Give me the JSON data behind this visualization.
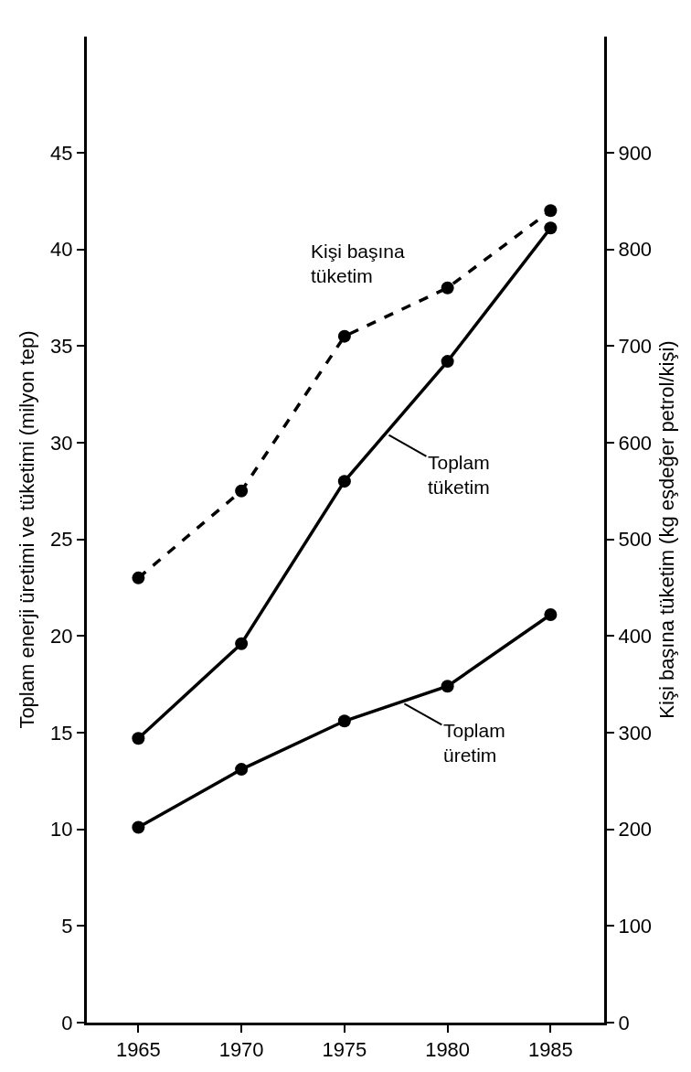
{
  "chart_data": {
    "type": "line",
    "xlabel": null,
    "ylabel": "Toplam enerji üretimi ve tüketimi (milyon tep)",
    "y2label": "Kişi başına tüketim (kg eşdeğer petrol/kişi)",
    "x": [
      1965,
      1970,
      1975,
      1980,
      1985
    ],
    "series": [
      {
        "name": "Kişi başına\ntüketim",
        "color": "#000000",
        "values": [
          460,
          550,
          710,
          760,
          840
        ],
        "axis": "y2",
        "line_style": "dashed"
      },
      {
        "name": "Toplam\ntüketim",
        "color": "#000000",
        "values": [
          14.7,
          19.6,
          28.0,
          34.2,
          41.1
        ],
        "line_style": "solid"
      },
      {
        "name": "Toplam\nüretim",
        "color": "#000000",
        "values": [
          10.1,
          13.1,
          15.6,
          17.4,
          21.1
        ],
        "line_style": "solid"
      }
    ],
    "xlim": [
      1962.5,
      1987.6
    ],
    "xticks": [
      1965,
      1970,
      1975,
      1980,
      1985
    ],
    "ylim": [
      0,
      51
    ],
    "yticks": [
      0,
      5,
      10,
      15,
      20,
      25,
      30,
      35,
      40,
      45
    ],
    "y2lim": [
      0,
      1020
    ],
    "y2ticks": [
      0,
      100,
      200,
      300,
      400,
      500,
      600,
      700,
      800,
      900
    ],
    "marker": "circle",
    "legend": false
  }
}
